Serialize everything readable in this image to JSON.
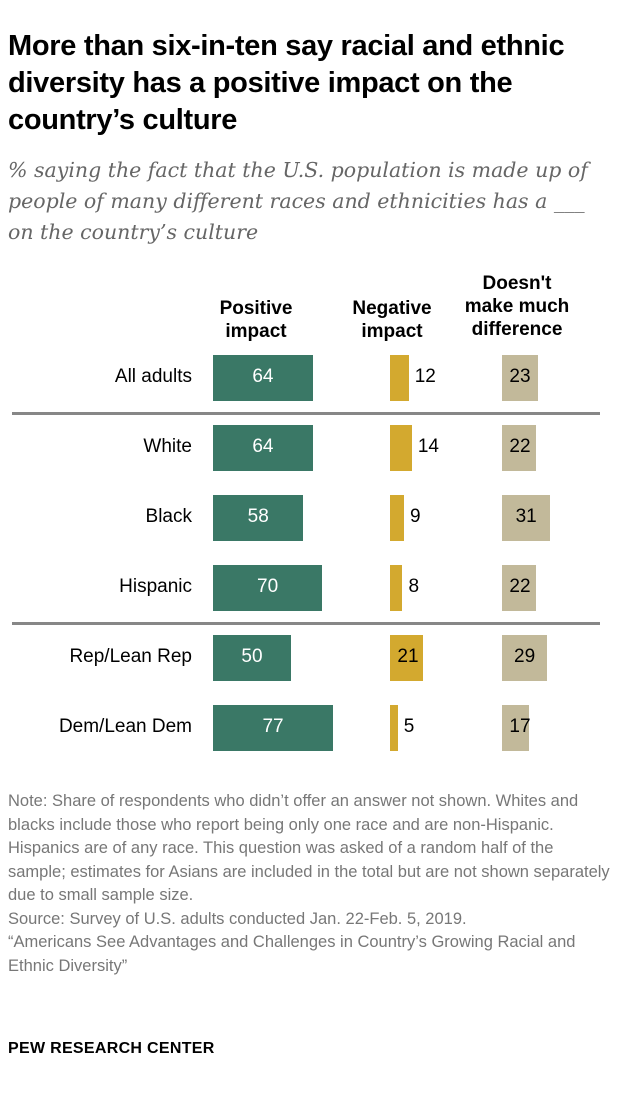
{
  "chart_data": {
    "type": "bar",
    "title": "More than six-in-ten say racial and ethnic diversity has a positive impact on the country’s culture",
    "subtitle": "% saying the fact that the U.S. population is made up of people of many different races and ethnicities has a ___ on the country’s culture",
    "categories": [
      "All adults",
      "White",
      "Black",
      "Hispanic",
      "Rep/Lean Rep",
      "Dem/Lean Dem"
    ],
    "series": [
      {
        "name": "Positive impact",
        "values": [
          64,
          64,
          58,
          70,
          50,
          77
        ],
        "color": "#3a7866"
      },
      {
        "name": "Negative impact",
        "values": [
          12,
          14,
          9,
          8,
          21,
          5
        ],
        "color": "#d3a92f"
      },
      {
        "name": "Doesn't make much difference",
        "values": [
          23,
          22,
          31,
          22,
          29,
          17
        ],
        "color": "#c2b99a"
      }
    ],
    "group_separators_after": [
      "All adults",
      "Hispanic"
    ]
  },
  "headers": {
    "pos": [
      "Positive",
      "impact"
    ],
    "neg": [
      "Negative",
      "impact"
    ],
    "diff": [
      "Doesn't",
      "make much",
      "difference"
    ]
  },
  "note": "Note: Share of respondents who didn’t offer an answer not shown. Whites and blacks include those who report being only one race and are non-Hispanic. Hispanics are of any race. This question was asked of a random half of the sample; estimates for Asians are included in the total but are not shown separately due to small sample size.",
  "source": "Source: Survey of U.S. adults conducted Jan. 22-Feb. 5, 2019.",
  "report": "“Americans See Advantages and Challenges in Country’s Growing Racial and Ethnic Diversity”",
  "brand": "PEW RESEARCH CENTER"
}
